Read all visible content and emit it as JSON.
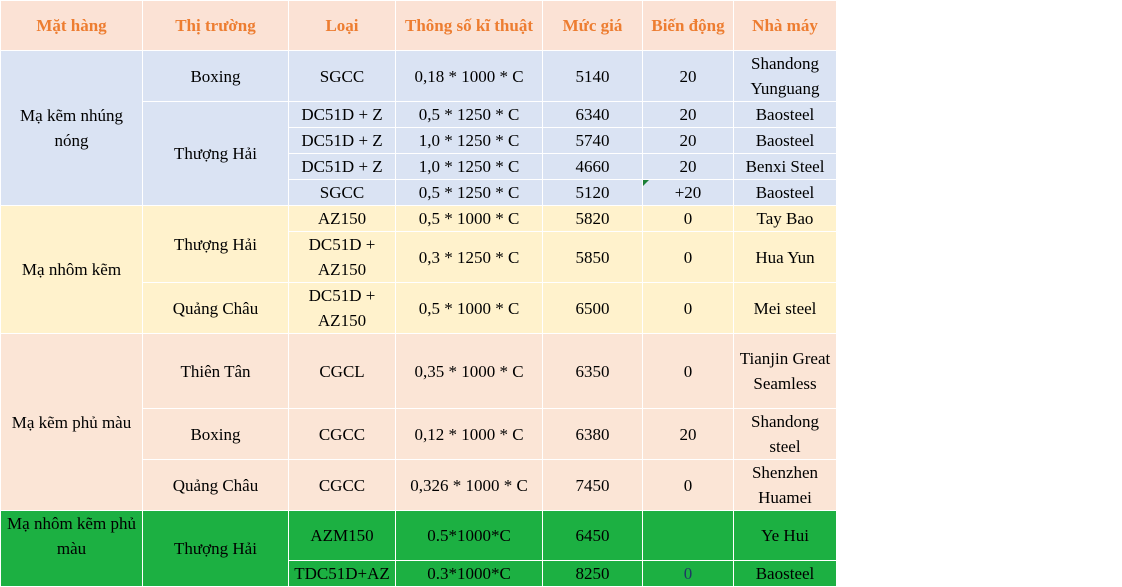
{
  "headers": {
    "product": "Mặt hàng",
    "market": "Thị trường",
    "type": "Loại",
    "spec": "Thông số kĩ thuật",
    "price": "Mức giá",
    "change": "Biến động",
    "factory": "Nhà máy"
  },
  "groups": {
    "hot_dip": "Mạ kẽm nhúng nóng",
    "al_zn": "Mạ nhôm kẽm",
    "color_zn": "Mạ kẽm phủ màu",
    "color_alzn": "Mạ nhôm kẽm phủ màu"
  },
  "markets": {
    "boxing": "Boxing",
    "shanghai": "Thượng Hải",
    "guangzhou": "Quảng Châu",
    "tianjin": "Thiên Tân"
  },
  "rows": [
    {
      "type": "SGCC",
      "spec": "0,18 * 1000 * C",
      "price": "5140",
      "change": "20",
      "factory": "Shandong Yunguang"
    },
    {
      "type": "DC51D + Z",
      "spec": "0,5 * 1250 * C",
      "price": "6340",
      "change": "20",
      "factory": "Baosteel"
    },
    {
      "type": "DC51D + Z",
      "spec": "1,0 * 1250 * C",
      "price": "5740",
      "change": "20",
      "factory": "Baosteel"
    },
    {
      "type": "DC51D + Z",
      "spec": "1,0 * 1250 * C",
      "price": "4660",
      "change": "20",
      "factory": "Benxi Steel"
    },
    {
      "type": "SGCC",
      "spec": "0,5 * 1250 * C",
      "price": "5120",
      "change": "+20",
      "factory": "Baosteel"
    },
    {
      "type": "AZ150",
      "spec": "0,5 * 1000 * C",
      "price": "5820",
      "change": "0",
      "factory": "Tay Bao"
    },
    {
      "type": "DC51D + AZ150",
      "spec": "0,3 * 1250 * C",
      "price": "5850",
      "change": "0",
      "factory": "Hua Yun"
    },
    {
      "type": "DC51D + AZ150",
      "spec": "0,5 * 1000 * C",
      "price": "6500",
      "change": "0",
      "factory": "Mei steel"
    },
    {
      "type": "CGCL",
      "spec": "0,35 * 1000 * C",
      "price": "6350",
      "change": "0",
      "factory": "Tianjin Great Seamless"
    },
    {
      "type": "CGCC",
      "spec": "0,12 * 1000 * C",
      "price": "6380",
      "change": "20",
      "factory": "Shandong steel"
    },
    {
      "type": "CGCC",
      "spec": "0,326 * 1000 * C",
      "price": "7450",
      "change": "0",
      "factory": "Shenzhen Huamei"
    },
    {
      "type": "AZM150",
      "spec": "0.5*1000*C",
      "price": "6450",
      "change": "",
      "factory": "Ye Hui"
    },
    {
      "type": "TDC51D+AZ",
      "spec": "0.3*1000*C",
      "price": "8250",
      "change": "0",
      "factory": "Baosteel"
    }
  ]
}
